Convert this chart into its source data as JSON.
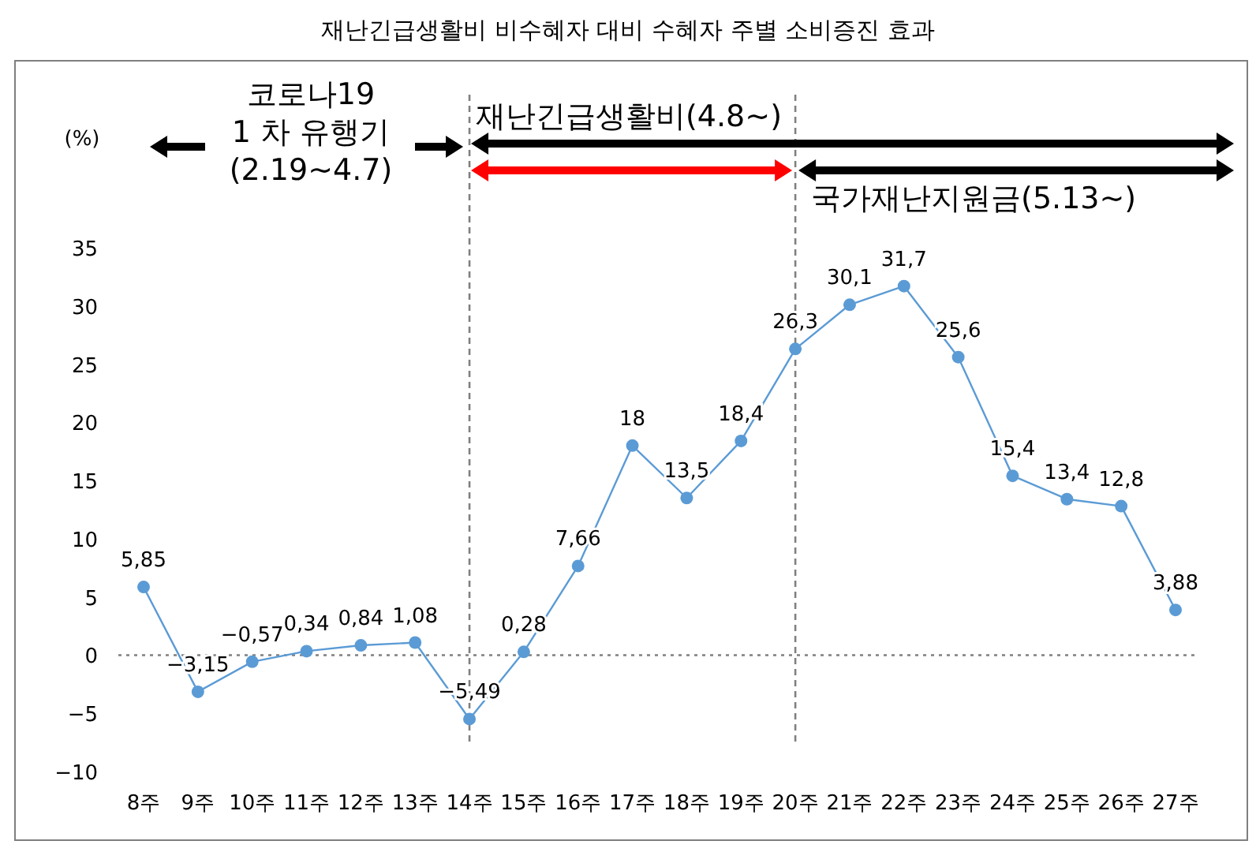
{
  "chart_data": {
    "type": "line",
    "title": "재난긴급생활비 비수혜자 대비 수혜자 주별 소비증진 효과",
    "ylabel": "(%)",
    "categories": [
      "8주",
      "9주",
      "10주",
      "11주",
      "12주",
      "13주",
      "14주",
      "15주",
      "16주",
      "17주",
      "18주",
      "19주",
      "20주",
      "21주",
      "22주",
      "23주",
      "24주",
      "25주",
      "26주",
      "27주"
    ],
    "series": [
      {
        "color": "#5b9bd5",
        "values": [
          5.85,
          -3.15,
          -0.57,
          0.34,
          0.84,
          1.08,
          -5.49,
          0.28,
          7.66,
          18,
          13.5,
          18.4,
          26.3,
          30.1,
          31.7,
          25.6,
          15.4,
          13.4,
          12.8,
          3.88
        ],
        "value_labels": [
          "5,85",
          "−3,15",
          "−0,57",
          "0,34",
          "0,84",
          "1,08",
          "−5,49",
          "0,28",
          "7,66",
          "18",
          "13,5",
          "18,4",
          "26,3",
          "30,1",
          "31,7",
          "25,6",
          "15,4",
          "13,4",
          "12,8",
          "3,88"
        ]
      }
    ],
    "ylim": [
      -10,
      35
    ],
    "yticks": [
      -10,
      -5,
      0,
      5,
      10,
      15,
      20,
      25,
      30,
      35
    ],
    "ref_lines": [
      {
        "axis": "y",
        "value": 0,
        "line_style": "dotted",
        "color": "#808080"
      },
      {
        "axis": "x",
        "value": "14주",
        "line_style": "dashed",
        "color": "#808080"
      },
      {
        "axis": "x",
        "value": "20주",
        "line_style": "dashed",
        "color": "#808080"
      }
    ],
    "annotations": [
      "코로나19\n1 차 유행기\n(2.19~4.7)",
      "재난긴급생활비(4.8~)",
      "국가재난지원금(5.13~)"
    ],
    "marker": "circle",
    "line_style": "solid",
    "grid": false,
    "legend": false
  }
}
